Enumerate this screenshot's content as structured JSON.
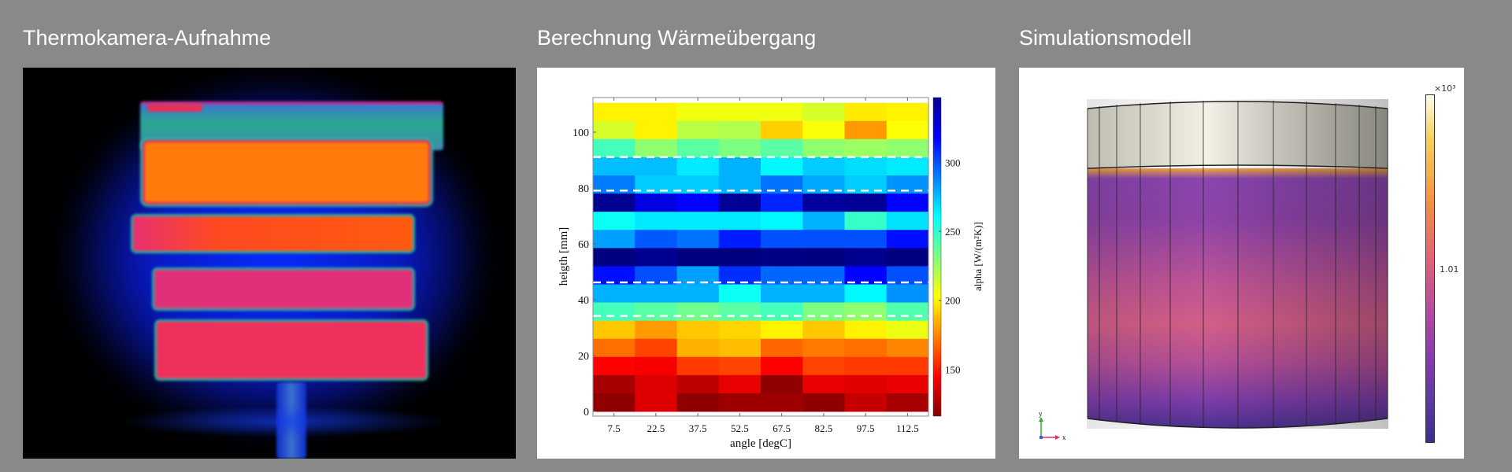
{
  "titles": {
    "thermal": "Thermokamera-Aufnahme",
    "heat_transfer": "Berechnung Wärmeübergang",
    "simulation": "Simulationsmodell"
  },
  "chart_data": {
    "type": "heatmap",
    "xlabel": "angle [degC]",
    "ylabel": "heigth [mm]",
    "colorbar_label": "alpha [W/(m²K)]",
    "colormap": "jet-reversed",
    "x": [
      7.5,
      22.5,
      37.5,
      52.5,
      67.5,
      82.5,
      97.5,
      112.5
    ],
    "x_tick_labels": [
      "7.5",
      "22.5",
      "37.5",
      "52.5",
      "67.5",
      "82.5",
      "97.5",
      "112.5"
    ],
    "xlim": [
      0,
      120
    ],
    "y_row_height": 6.5,
    "y_tick_values": [
      0,
      20,
      40,
      60,
      80,
      100
    ],
    "y_tick_labels": [
      "0",
      "20",
      "40",
      "60",
      "80",
      "100"
    ],
    "ylim": [
      -1.7,
      112.4
    ],
    "clim": [
      116,
      347
    ],
    "colorbar_tick_values": [
      150,
      200,
      250,
      300
    ],
    "colorbar_tick_labels": [
      "150",
      "200",
      "250",
      "300"
    ],
    "dashed_lines_y": [
      91.1,
      79.1,
      46.2,
      34.2
    ],
    "rows_top_to_bottom": [
      [
        200,
        200,
        206,
        206,
        206,
        212,
        198,
        200
      ],
      [
        212,
        200,
        218,
        220,
        192,
        204,
        180,
        203
      ],
      [
        245,
        228,
        240,
        232,
        240,
        228,
        225,
        228
      ],
      [
        275,
        275,
        265,
        278,
        262,
        272,
        268,
        265
      ],
      [
        290,
        272,
        272,
        278,
        292,
        280,
        272,
        285
      ],
      [
        343,
        325,
        318,
        342,
        310,
        340,
        342,
        318
      ],
      [
        258,
        265,
        265,
        265,
        262,
        278,
        248,
        267
      ],
      [
        282,
        298,
        292,
        312,
        300,
        300,
        300,
        315
      ],
      [
        347,
        343,
        347,
        347,
        346,
        347,
        343,
        347
      ],
      [
        315,
        300,
        282,
        308,
        295,
        295,
        318,
        300
      ],
      [
        278,
        278,
        278,
        258,
        278,
        278,
        262,
        285
      ],
      [
        245,
        240,
        235,
        240,
        245,
        232,
        228,
        242
      ],
      [
        190,
        180,
        190,
        193,
        200,
        190,
        200,
        207
      ],
      [
        170,
        160,
        185,
        188,
        168,
        172,
        170,
        175
      ],
      [
        145,
        143,
        158,
        160,
        145,
        160,
        158,
        158
      ],
      [
        125,
        137,
        130,
        140,
        120,
        140,
        138,
        140
      ],
      [
        120,
        137,
        120,
        123,
        123,
        120,
        132,
        125
      ]
    ]
  },
  "simulation": {
    "colorbar_exponent": "×10³",
    "colorbar_tick": "1.01",
    "axis_x": "x",
    "axis_y": "y"
  }
}
